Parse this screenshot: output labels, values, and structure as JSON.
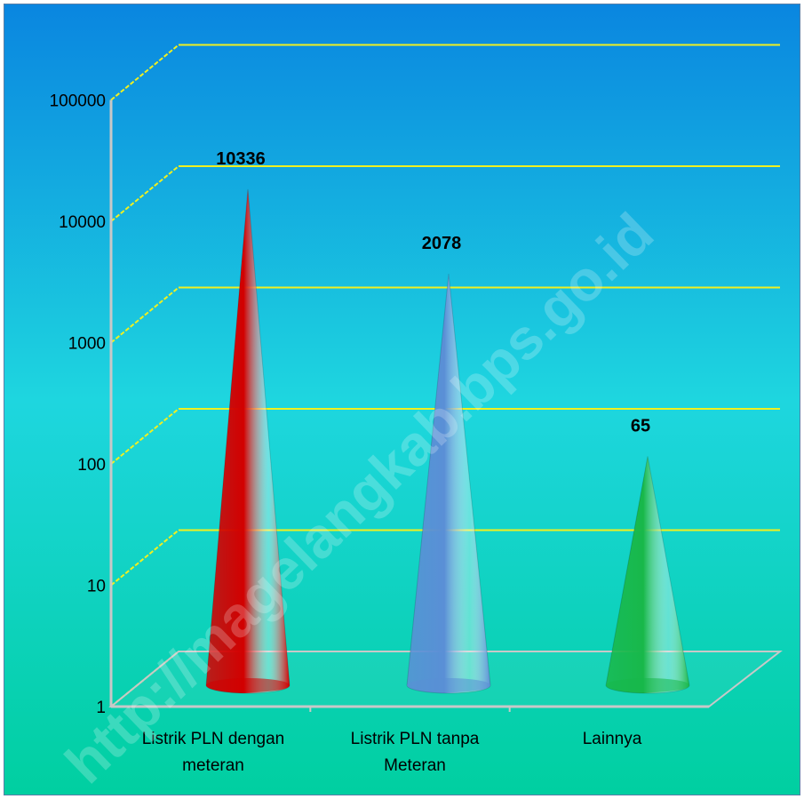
{
  "chart_data": {
    "type": "bar",
    "scale": "log",
    "categories": [
      "Listrik PLN dengan meteran",
      "Listrik PLN tanpa Meteran",
      "Lainnya"
    ],
    "category_lines": [
      [
        "Listrik PLN dengan",
        "meteran"
      ],
      [
        "Listrik PLN tanpa",
        "Meteran"
      ],
      [
        "Lainnya"
      ]
    ],
    "values": [
      10336,
      2078,
      65
    ],
    "data_labels": [
      "10336",
      "2078",
      "65"
    ],
    "y_ticks": [
      1,
      10,
      100,
      1000,
      10000,
      100000
    ],
    "y_tick_labels": [
      "1",
      "10",
      "100",
      "1000",
      "10000",
      "100000"
    ],
    "ylim": [
      1,
      1000000
    ],
    "grid": true,
    "legend": "none",
    "watermark": "http://magelangkab.bps.go.id",
    "colors": {
      "background_top": "#0a86e0",
      "background_mid": "#1ed6df",
      "background_bottom": "#00cfa0",
      "gridline": "#f0f020",
      "axis": "#c8c8c8",
      "series": [
        "#d20000",
        "#5a8fd6",
        "#18b84a"
      ]
    }
  }
}
